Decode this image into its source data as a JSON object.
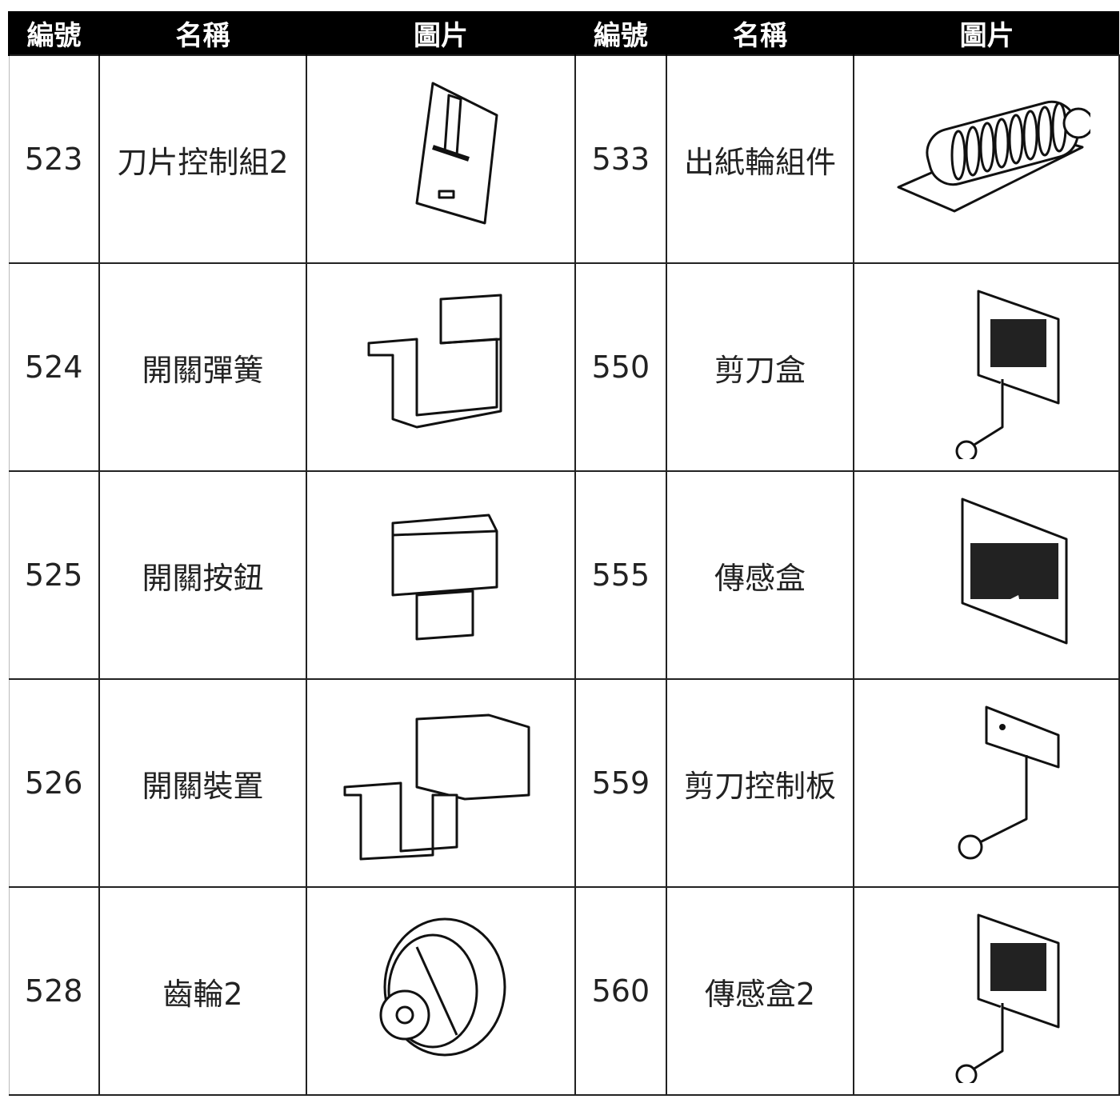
{
  "table": {
    "header": [
      "編號",
      "名稱",
      "圖片",
      "編號",
      "名稱",
      "圖片"
    ],
    "rows": [
      [
        "523",
        "刀片控制組2",
        "533",
        "出紙輪組件"
      ],
      [
        "524",
        "開關彈簧",
        "550",
        "剪刀盒"
      ],
      [
        "525",
        "開關按鈕",
        "555",
        "傳感盒"
      ],
      [
        "526",
        "開關裝置",
        "559",
        "剪刀控制板"
      ],
      [
        "528",
        "齒輪2",
        "560",
        "傳感盒2"
      ]
    ]
  }
}
